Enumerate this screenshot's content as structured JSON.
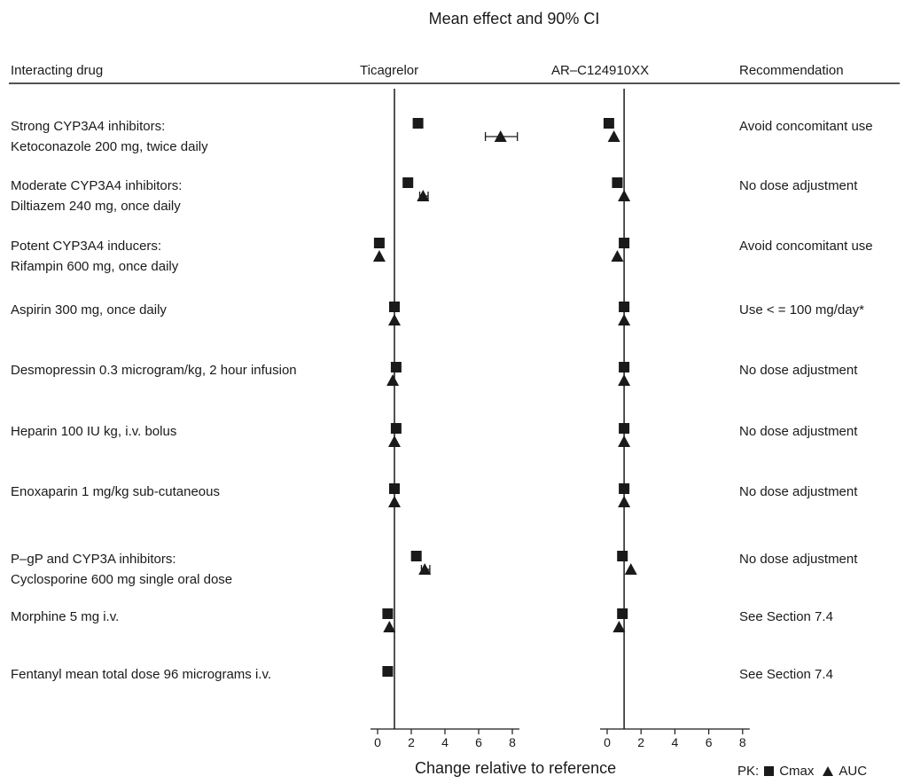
{
  "chart_data": {
    "type": "forest",
    "title": "Mean effect and 90% CI",
    "xlabel": "Change relative to reference",
    "headers": {
      "drug": "Interacting drug",
      "panel1": "Ticagrelor",
      "panel2": "AR–C124910XX",
      "recommendation": "Recommendation"
    },
    "xlim": [
      0,
      8
    ],
    "xticks": [
      "0",
      "2",
      "4",
      "6",
      "8"
    ],
    "reference_line": 1,
    "legend": {
      "prefix": "PK:",
      "cmax": "Cmax",
      "auc": "AUC"
    },
    "rows": [
      {
        "drug": "Strong CYP3A4 inhibitors:\nKetoconazole 200 mg, twice daily",
        "ticagrelor": {
          "cmax": 2.4,
          "auc": 7.3,
          "auc_ci": [
            6.4,
            8.3
          ]
        },
        "metabolite": {
          "cmax": 0.1,
          "auc": 0.4
        },
        "recommendation": "Avoid concomitant use"
      },
      {
        "drug": "Moderate CYP3A4 inhibitors:\nDiltiazem 240 mg, once daily",
        "ticagrelor": {
          "cmax": 1.8,
          "auc": 2.7,
          "auc_ci": [
            2.5,
            3.0
          ]
        },
        "metabolite": {
          "cmax": 0.6,
          "auc": 1.0
        },
        "recommendation": "No dose adjustment"
      },
      {
        "drug": "Potent CYP3A4 inducers:\nRifampin 600 mg, once daily",
        "ticagrelor": {
          "cmax": 0.1,
          "auc": 0.1
        },
        "metabolite": {
          "cmax": 1.0,
          "auc": 0.6
        },
        "recommendation": "Avoid concomitant use"
      },
      {
        "drug": "Aspirin 300 mg, once daily",
        "ticagrelor": {
          "cmax": 1.0,
          "auc": 1.0
        },
        "metabolite": {
          "cmax": 1.0,
          "auc": 1.0
        },
        "recommendation": "Use < = 100 mg/day*"
      },
      {
        "drug": "Desmopressin 0.3 microgram/kg, 2 hour infusion",
        "ticagrelor": {
          "cmax": 1.1,
          "auc": 0.9
        },
        "metabolite": {
          "cmax": 1.0,
          "auc": 1.0
        },
        "recommendation": "No dose adjustment"
      },
      {
        "drug": "Heparin 100 IU kg, i.v. bolus",
        "ticagrelor": {
          "cmax": 1.1,
          "auc": 1.0
        },
        "metabolite": {
          "cmax": 1.0,
          "auc": 1.0
        },
        "recommendation": "No dose adjustment"
      },
      {
        "drug": "Enoxaparin 1 mg/kg sub-cutaneous",
        "ticagrelor": {
          "cmax": 1.0,
          "auc": 1.0
        },
        "metabolite": {
          "cmax": 1.0,
          "auc": 1.0
        },
        "recommendation": "No dose adjustment"
      },
      {
        "drug": "P–gP and CYP3A inhibitors:\nCyclosporine 600 mg single oral dose",
        "ticagrelor": {
          "cmax": 2.3,
          "auc": 2.8,
          "auc_ci": [
            2.6,
            3.1
          ]
        },
        "metabolite": {
          "cmax": 0.9,
          "auc": 1.4
        },
        "recommendation": "No dose adjustment"
      },
      {
        "drug": "Morphine 5 mg i.v.",
        "ticagrelor": {
          "cmax": 0.6,
          "auc": 0.7
        },
        "metabolite": {
          "cmax": 0.9,
          "auc": 0.7
        },
        "recommendation": "See Section 7.4"
      },
      {
        "drug": "Fentanyl mean total dose 96 micrograms i.v.",
        "ticagrelor": {
          "cmax": 0.6
        },
        "metabolite": {},
        "recommendation": "See Section 7.4"
      }
    ]
  }
}
